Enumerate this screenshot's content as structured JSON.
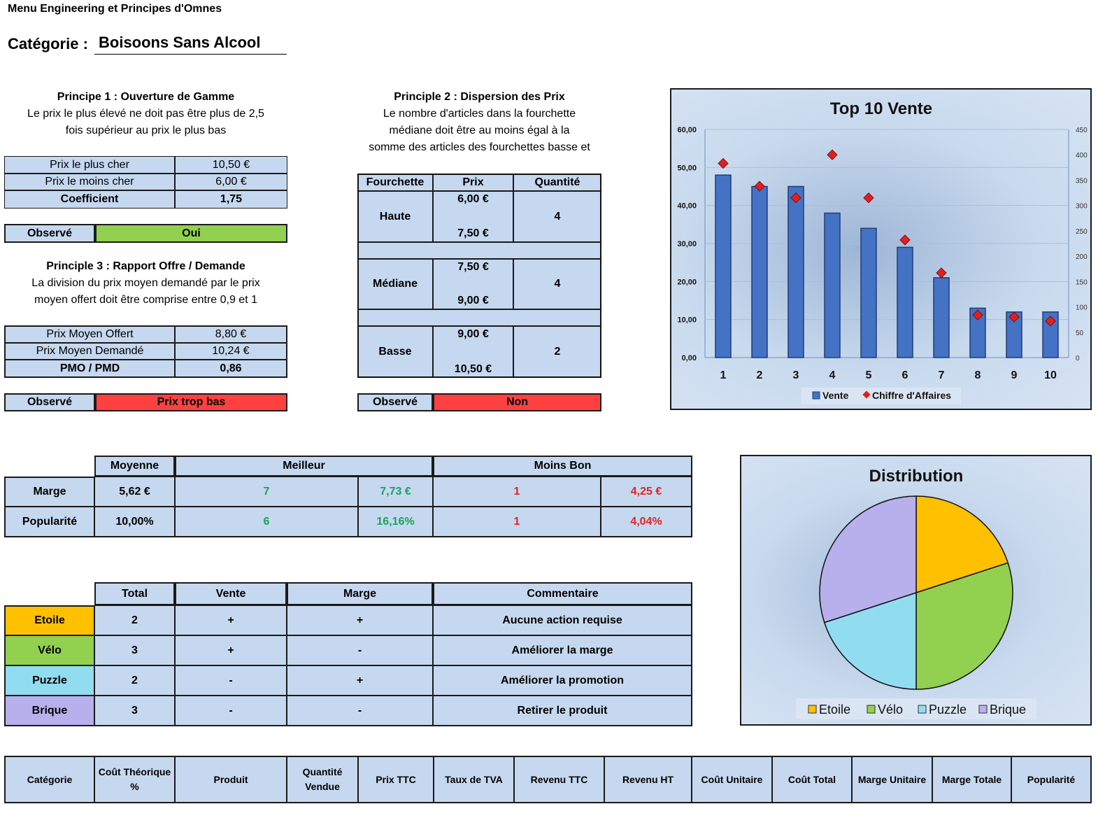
{
  "header": {
    "title": "Menu Engineering et Principes d'Omnes",
    "category_label": "Catégorie :",
    "category_value": "Boisoons Sans Alcool"
  },
  "p1": {
    "title": "Principe 1 : Ouverture de Gamme",
    "desc1": "Le prix le plus élevé ne doit pas être plus de 2,5",
    "desc2": "fois supérieur au prix le plus bas",
    "rows": [
      {
        "label": "Prix le plus cher",
        "value": "10,50 €"
      },
      {
        "label": "Prix le moins cher",
        "value": "6,00 €"
      },
      {
        "label": "Coefficient",
        "value": "1,75"
      }
    ],
    "observed_label": "Observé",
    "observed_value": "Oui",
    "observed_color": "#92d050"
  },
  "p2": {
    "title": "Principle 2 : Dispersion des Prix",
    "desc1": "Le nombre d'articles dans la fourchette",
    "desc2": "médiane doit être au moins égal à la",
    "desc3": "somme des articles des fourchettes basse et",
    "headers": [
      "Fourchette",
      "Prix",
      "Quantité"
    ],
    "ranges": [
      {
        "name": "Haute",
        "p1": "6,00 €",
        "p2": "7,50 €",
        "qty": "4"
      },
      {
        "name": "Médiane",
        "p1": "7,50 €",
        "p2": "9,00 €",
        "qty": "4"
      },
      {
        "name": "Basse",
        "p1": "9,00 €",
        "p2": "10,50 €",
        "qty": "2"
      }
    ],
    "observed_label": "Observé",
    "observed_value": "Non",
    "observed_color": "#ff4040"
  },
  "p3": {
    "title": "Principle 3 : Rapport Offre / Demande",
    "desc1": "La division du prix moyen demandé par le prix",
    "desc2": "moyen offert doit être comprise entre 0,9 et 1",
    "rows": [
      {
        "label": "Prix Moyen Offert",
        "value": "8,80 €"
      },
      {
        "label": "Prix Moyen Demandé",
        "value": "10,24 €"
      },
      {
        "label": "PMO / PMD",
        "value": "0,86"
      }
    ],
    "observed_label": "Observé",
    "observed_value": "Prix trop bas",
    "observed_color": "#ff4040"
  },
  "stats": {
    "headers": [
      "Moyenne",
      "Meilleur",
      "Moins Bon"
    ],
    "rows": [
      {
        "label": "Marge",
        "avg": "5,62 €",
        "best_id": "7",
        "best_val": "7,73 €",
        "worst_id": "1",
        "worst_val": "4,25 €"
      },
      {
        "label": "Popularité",
        "avg": "10,00%",
        "best_id": "6",
        "best_val": "16,16%",
        "worst_id": "1",
        "worst_val": "4,04%"
      }
    ]
  },
  "classes": {
    "headers": [
      "Total",
      "Vente",
      "Marge",
      "Commentaire"
    ],
    "rows": [
      {
        "name": "Etoile",
        "total": "2",
        "vente": "+",
        "marge": "+",
        "comment": "Aucune action requise",
        "color": "#ffc000"
      },
      {
        "name": "Vélo",
        "total": "3",
        "vente": "+",
        "marge": "-",
        "comment": "Améliorer la marge",
        "color": "#92d050"
      },
      {
        "name": "Puzzle",
        "total": "2",
        "vente": "-",
        "marge": "+",
        "comment": "Améliorer la promotion",
        "color": "#92dcf0"
      },
      {
        "name": "Brique",
        "total": "3",
        "vente": "-",
        "marge": "-",
        "comment": "Retirer le produit",
        "color": "#b8b0ec"
      }
    ]
  },
  "bottom_headers": [
    "Catégorie",
    "Coût Théorique %",
    "Produit",
    "Quantité Vendue",
    "Prix TTC",
    "Taux de TVA",
    "Revenu TTC",
    "Revenu HT",
    "Coût Unitaire",
    "Coût Total",
    "Marge Unitaire",
    "Marge Totale",
    "Popularité"
  ],
  "chart_data": [
    {
      "type": "bar",
      "title": "Top 10 Vente",
      "categories": [
        "1",
        "2",
        "3",
        "4",
        "5",
        "6",
        "7",
        "8",
        "9",
        "10"
      ],
      "series": [
        {
          "name": "Vente",
          "type": "bar",
          "axis": "left",
          "values": [
            48,
            45,
            45,
            38,
            34,
            29,
            21,
            13,
            12,
            12
          ],
          "color": "#4472c4"
        },
        {
          "name": "Chiffre d'Affaires",
          "type": "scatter",
          "axis": "right",
          "values": [
            383,
            338,
            315,
            400,
            315,
            232,
            167,
            84,
            80,
            72
          ],
          "color": "#e02020"
        }
      ],
      "ylim": [
        0,
        60
      ],
      "yticks": [
        "0,00",
        "10,00",
        "20,00",
        "30,00",
        "40,00",
        "50,00",
        "60,00"
      ],
      "y2lim": [
        0,
        450
      ],
      "y2ticks": [
        "0",
        "50",
        "100",
        "150",
        "200",
        "250",
        "300",
        "350",
        "400",
        "450"
      ],
      "legend": "bottom"
    },
    {
      "type": "pie",
      "title": "Distribution",
      "labels": [
        "Etoile",
        "Vélo",
        "Puzzle",
        "Brique"
      ],
      "values": [
        2,
        3,
        2,
        3
      ],
      "colors": [
        "#ffc000",
        "#92d050",
        "#92dcf0",
        "#b8b0ec"
      ],
      "legend": "bottom"
    }
  ]
}
